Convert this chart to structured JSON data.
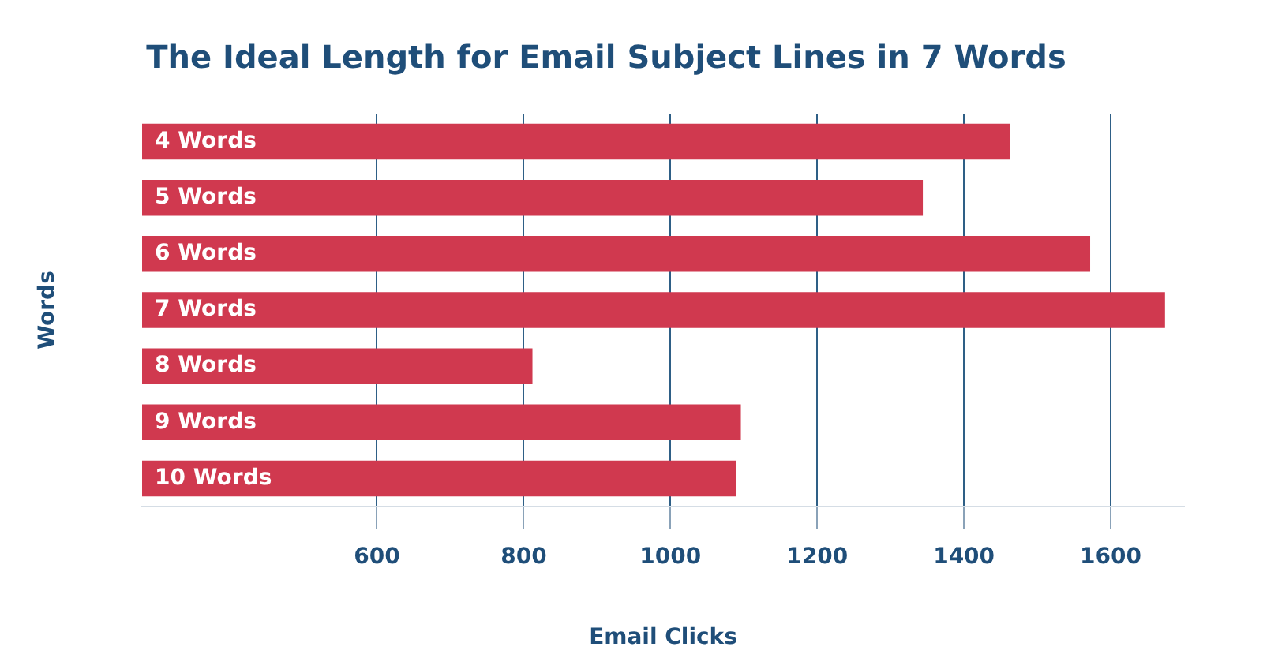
{
  "chart_data": {
    "type": "bar",
    "orientation": "horizontal",
    "title": "The Ideal Length for Email Subject Lines in 7 Words",
    "xlabel": "Email Clicks",
    "ylabel": "Words",
    "categories": [
      "4 Words",
      "5 Words",
      "6 Words",
      "7 Words",
      "8 Words",
      "9 Words",
      "10 Words"
    ],
    "values": [
      1463,
      1344,
      1572,
      1674,
      812,
      1096,
      1089
    ],
    "color": "#d0394f",
    "xlim": [
      280,
      1700
    ],
    "xticks": [
      600,
      800,
      1000,
      1200,
      1400,
      1600
    ],
    "grid": "x"
  }
}
